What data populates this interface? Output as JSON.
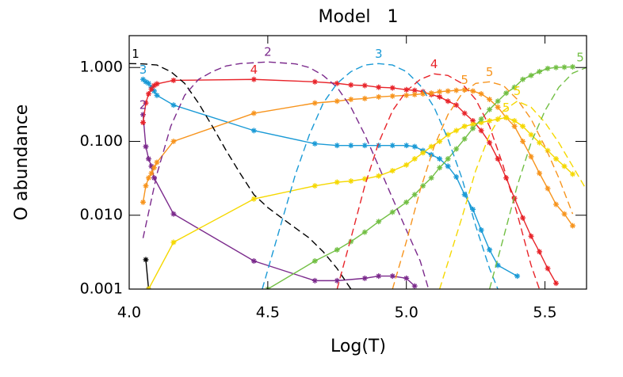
{
  "chart_data": {
    "type": "line",
    "title": "Model   1",
    "x_label": "Log(T)",
    "y_label": "O abundance",
    "log_y": true,
    "xlim": [
      4.0,
      5.65
    ],
    "ylim": [
      0.001,
      2.7
    ],
    "xticks": [
      {
        "value": 4.0,
        "label": "4.0"
      },
      4.5,
      {
        "value": 5.0,
        "label": "5.0"
      },
      5.5
    ],
    "yticks": [
      {
        "value": 0.001,
        "label": "0.001"
      },
      {
        "value": 0.01,
        "label": "0.010"
      },
      {
        "value": 0.1,
        "label": "0.100"
      },
      {
        "value": 1,
        "label": "1.000"
      }
    ],
    "series": [
      {
        "color": "#000000",
        "style": "solid",
        "marker": true,
        "x": [
          4.06,
          4.07
        ],
        "values": [
          0.0025,
          0.001
        ]
      },
      {
        "label": "2",
        "color": "#7b2a8c",
        "style": "solid",
        "marker": true,
        "x": [
          4.05,
          4.06,
          4.07,
          4.08,
          4.09,
          4.16,
          4.45,
          4.67,
          4.75,
          4.85,
          4.9,
          4.95,
          5.0,
          5.03
        ],
        "values": [
          0.23,
          0.085,
          0.058,
          0.046,
          0.032,
          0.0104,
          0.0024,
          0.0013,
          0.0013,
          0.0014,
          0.0015,
          0.0015,
          0.0014,
          0.0011
        ]
      },
      {
        "label": "3",
        "color": "#1a9ad6",
        "style": "solid",
        "marker": true,
        "x": [
          4.05,
          4.06,
          4.07,
          4.08,
          4.09,
          4.1,
          4.16,
          4.45,
          4.67,
          4.75,
          4.8,
          4.85,
          4.9,
          4.95,
          5.0,
          5.03,
          5.06,
          5.09,
          5.12,
          5.15,
          5.18,
          5.21,
          5.24,
          5.27,
          5.3,
          5.33,
          5.4
        ],
        "values": [
          0.69,
          0.64,
          0.61,
          0.54,
          0.48,
          0.42,
          0.31,
          0.14,
          0.093,
          0.088,
          0.088,
          0.088,
          0.088,
          0.088,
          0.088,
          0.085,
          0.075,
          0.066,
          0.058,
          0.046,
          0.033,
          0.019,
          0.012,
          0.0063,
          0.0034,
          0.0021,
          0.0015
        ]
      },
      {
        "label": "4",
        "color": "#e8242a",
        "style": "solid",
        "marker": true,
        "x": [
          4.05,
          4.06,
          4.07,
          4.08,
          4.09,
          4.1,
          4.16,
          4.45,
          4.67,
          4.75,
          4.8,
          4.85,
          4.9,
          4.95,
          5.0,
          5.03,
          5.06,
          5.09,
          5.12,
          5.15,
          5.18,
          5.21,
          5.24,
          5.27,
          5.3,
          5.33,
          5.36,
          5.39,
          5.42,
          5.45,
          5.48,
          5.51,
          5.54
        ],
        "values": [
          0.18,
          0.33,
          0.44,
          0.51,
          0.57,
          0.6,
          0.67,
          0.69,
          0.64,
          0.61,
          0.58,
          0.57,
          0.54,
          0.53,
          0.5,
          0.49,
          0.47,
          0.43,
          0.4,
          0.35,
          0.31,
          0.24,
          0.19,
          0.14,
          0.096,
          0.058,
          0.032,
          0.017,
          0.0092,
          0.0052,
          0.0032,
          0.0019,
          0.0012
        ]
      },
      {
        "label": "5",
        "color": "#f7941d",
        "style": "solid",
        "marker": true,
        "x": [
          4.05,
          4.06,
          4.07,
          4.08,
          4.09,
          4.1,
          4.16,
          4.45,
          4.67,
          4.75,
          4.8,
          4.85,
          4.9,
          4.95,
          5.0,
          5.03,
          5.06,
          5.09,
          5.12,
          5.15,
          5.18,
          5.21,
          5.24,
          5.27,
          5.3,
          5.33,
          5.36,
          5.39,
          5.42,
          5.45,
          5.48,
          5.51,
          5.54,
          5.57,
          5.6
        ],
        "values": [
          0.015,
          0.025,
          0.032,
          0.037,
          0.044,
          0.052,
          0.1,
          0.24,
          0.33,
          0.35,
          0.37,
          0.38,
          0.4,
          0.41,
          0.42,
          0.43,
          0.44,
          0.45,
          0.47,
          0.48,
          0.49,
          0.5,
          0.48,
          0.44,
          0.37,
          0.29,
          0.21,
          0.16,
          0.1,
          0.062,
          0.037,
          0.023,
          0.014,
          0.0104,
          0.0072
        ]
      },
      {
        "label": "5",
        "color": "#f5d800",
        "style": "solid",
        "marker": true,
        "x": [
          4.07,
          4.16,
          4.45,
          4.67,
          4.75,
          4.8,
          4.85,
          4.9,
          4.95,
          5.0,
          5.03,
          5.06,
          5.09,
          5.12,
          5.15,
          5.18,
          5.21,
          5.24,
          5.27,
          5.3,
          5.33,
          5.36,
          5.39,
          5.42,
          5.45,
          5.48,
          5.51,
          5.54,
          5.57,
          5.6
        ],
        "values": [
          0.001,
          0.0043,
          0.0166,
          0.025,
          0.028,
          0.029,
          0.031,
          0.034,
          0.04,
          0.048,
          0.058,
          0.07,
          0.085,
          0.1,
          0.123,
          0.14,
          0.16,
          0.17,
          0.18,
          0.19,
          0.2,
          0.21,
          0.19,
          0.16,
          0.123,
          0.096,
          0.075,
          0.058,
          0.046,
          0.036
        ]
      },
      {
        "color": "#72bf44",
        "style": "solid",
        "marker": true,
        "x": [
          4.5,
          4.67,
          4.75,
          4.8,
          4.85,
          4.9,
          4.95,
          5.0,
          5.03,
          5.06,
          5.09,
          5.12,
          5.15,
          5.18,
          5.21,
          5.24,
          5.27,
          5.3,
          5.33,
          5.36,
          5.39,
          5.42,
          5.45,
          5.48,
          5.51,
          5.54,
          5.57,
          5.6
        ],
        "values": [
          0.001,
          0.0024,
          0.0034,
          0.0044,
          0.0059,
          0.0082,
          0.011,
          0.015,
          0.019,
          0.025,
          0.032,
          0.044,
          0.058,
          0.079,
          0.108,
          0.15,
          0.2,
          0.27,
          0.35,
          0.45,
          0.54,
          0.69,
          0.78,
          0.88,
          0.97,
          1.0,
          1.01,
          1.02
        ]
      },
      {
        "label": "1",
        "color": "#000000",
        "style": "dashed",
        "x": [
          4.0,
          4.05,
          4.1,
          4.15,
          4.2,
          4.25,
          4.3,
          4.35,
          4.4,
          4.45,
          4.5,
          4.55,
          4.6,
          4.65,
          4.7,
          4.75,
          4.8
        ],
        "values": [
          1.13,
          1.12,
          1.08,
          0.88,
          0.61,
          0.33,
          0.16,
          0.075,
          0.037,
          0.019,
          0.0127,
          0.0092,
          0.0067,
          0.0049,
          0.0032,
          0.0019,
          0.001
        ]
      },
      {
        "label": "2",
        "color": "#7b2a8c",
        "style": "dashed",
        "x": [
          4.05,
          4.1,
          4.15,
          4.2,
          4.25,
          4.3,
          4.35,
          4.4,
          4.5,
          4.6,
          4.65,
          4.7,
          4.75,
          4.8,
          4.85,
          4.9,
          4.95,
          5.0,
          5.05,
          5.08
        ],
        "values": [
          0.0049,
          0.036,
          0.16,
          0.42,
          0.69,
          0.88,
          1.05,
          1.13,
          1.19,
          1.12,
          1.0,
          0.78,
          0.54,
          0.29,
          0.123,
          0.046,
          0.017,
          0.0063,
          0.0024,
          0.001
        ]
      },
      {
        "label": "3",
        "color": "#1a9ad6",
        "style": "dashed",
        "x": [
          4.48,
          4.55,
          4.6,
          4.65,
          4.7,
          4.75,
          4.8,
          4.85,
          4.9,
          4.95,
          5.0,
          5.05,
          5.1,
          5.15,
          5.2,
          5.25,
          5.3,
          5.33
        ],
        "values": [
          0.001,
          0.0081,
          0.036,
          0.123,
          0.33,
          0.61,
          0.88,
          1.08,
          1.13,
          1.08,
          0.88,
          0.57,
          0.29,
          0.108,
          0.032,
          0.0072,
          0.0019,
          0.001
        ]
      },
      {
        "label": "4",
        "color": "#e8242a",
        "style": "dashed",
        "x": [
          4.75,
          4.8,
          4.85,
          4.9,
          4.95,
          5.0,
          5.05,
          5.1,
          5.15,
          5.2,
          5.25,
          5.3,
          5.35,
          5.4,
          5.45,
          5.48
        ],
        "values": [
          0.001,
          0.0049,
          0.025,
          0.096,
          0.26,
          0.48,
          0.69,
          0.82,
          0.78,
          0.61,
          0.37,
          0.16,
          0.046,
          0.0104,
          0.0021,
          0.001
        ]
      },
      {
        "label": "5",
        "color": "#f7941d",
        "style": "dashed",
        "x": [
          4.95,
          5.0,
          5.05,
          5.1,
          5.15,
          5.2,
          5.25,
          5.3,
          5.35,
          5.4,
          5.45,
          5.5,
          5.55,
          5.6
        ],
        "values": [
          0.001,
          0.0044,
          0.022,
          0.085,
          0.23,
          0.44,
          0.61,
          0.64,
          0.57,
          0.37,
          0.2,
          0.085,
          0.032,
          0.0104
        ]
      },
      {
        "label": "5",
        "color": "#f5d800",
        "style": "dashed",
        "x": [
          5.12,
          5.2,
          5.25,
          5.3,
          5.35,
          5.4,
          5.45,
          5.5,
          5.55,
          5.6,
          5.65
        ],
        "values": [
          0.001,
          0.0092,
          0.04,
          0.123,
          0.26,
          0.35,
          0.29,
          0.18,
          0.096,
          0.046,
          0.022
        ]
      },
      {
        "label": "5",
        "color": "#72bf44",
        "style": "dashed",
        "x": [
          5.3,
          5.35,
          5.4,
          5.45,
          5.5,
          5.55,
          5.6,
          5.65
        ],
        "values": [
          0.001,
          0.0049,
          0.025,
          0.096,
          0.26,
          0.54,
          0.84,
          1.0
        ]
      }
    ]
  }
}
